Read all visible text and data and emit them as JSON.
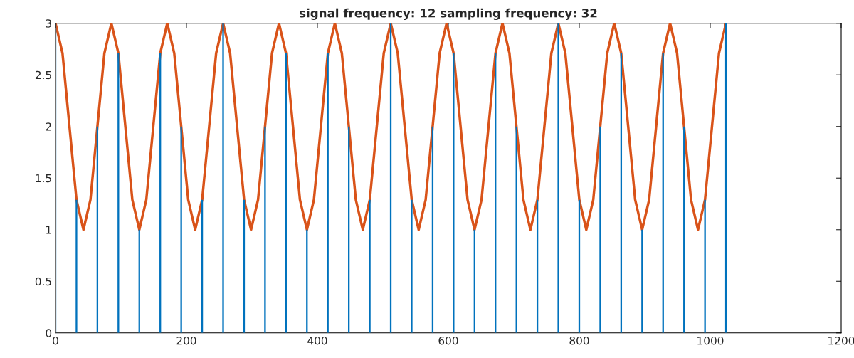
{
  "chart_data": {
    "type": "line",
    "title": "signal frequency: 12 sampling frequency: 32",
    "xlim": [
      0,
      1200
    ],
    "xticks": [
      0,
      200,
      400,
      600,
      800,
      1000,
      1200
    ],
    "ylim": [
      0,
      3
    ],
    "yticks": [
      0,
      0.5,
      1,
      1.5,
      2,
      2.5,
      3
    ],
    "grid": false,
    "legend": false,
    "marker": "none",
    "line_style": "solid",
    "series": [
      {
        "type": "bar",
        "color": "#0072bd",
        "x": [
          0,
          32,
          64,
          96,
          128,
          160,
          192,
          224,
          256,
          288,
          320,
          352,
          384,
          416,
          448,
          480,
          512,
          544,
          576,
          608,
          640,
          672,
          704,
          736,
          768,
          800,
          832,
          864,
          896,
          928,
          960,
          992,
          1024
        ],
        "values": [
          3,
          1.29,
          2,
          2.71,
          1,
          2.71,
          2,
          1.29,
          3,
          1.29,
          2,
          2.71,
          1,
          2.71,
          2,
          1.29,
          3,
          1.29,
          2,
          2.71,
          1,
          2.71,
          2,
          1.29,
          3,
          1.29,
          2,
          2.71,
          1,
          2.71,
          2,
          1.29,
          3
        ]
      },
      {
        "color": "#d95319",
        "x": [
          0,
          10.67,
          21.33,
          32,
          42.67,
          53.33,
          64,
          74.67,
          85.33,
          96,
          106.67,
          117.33,
          128,
          138.67,
          149.33,
          160,
          170.67,
          181.33,
          192,
          202.67,
          213.33,
          224,
          234.67,
          245.33,
          256,
          266.67,
          277.33,
          288,
          298.67,
          309.33,
          320,
          330.67,
          341.33,
          352,
          362.67,
          373.33,
          384,
          394.67,
          405.33,
          416,
          426.67,
          437.33,
          448,
          458.67,
          469.33,
          480,
          490.67,
          501.33,
          512,
          522.67,
          533.33,
          544,
          554.67,
          565.33,
          576,
          586.67,
          597.33,
          608,
          618.67,
          629.33,
          640,
          650.67,
          661.33,
          672,
          682.67,
          693.33,
          704,
          714.67,
          725.33,
          736,
          746.67,
          757.33,
          768,
          778.67,
          789.33,
          800,
          810.67,
          821.33,
          832,
          842.67,
          853.33,
          864,
          874.67,
          885.33,
          896,
          906.67,
          917.33,
          928,
          938.67,
          949.33,
          960,
          970.67,
          981.33,
          992,
          1002.67,
          1013.33,
          1024
        ],
        "values": [
          3,
          2.71,
          2,
          1.29,
          1,
          1.29,
          2,
          2.71,
          3,
          2.71,
          2,
          1.29,
          1,
          1.29,
          2,
          2.71,
          3,
          2.71,
          2,
          1.29,
          1,
          1.29,
          2,
          2.71,
          3,
          2.71,
          2,
          1.29,
          1,
          1.29,
          2,
          2.71,
          3,
          2.71,
          2,
          1.29,
          1,
          1.29,
          2,
          2.71,
          3,
          2.71,
          2,
          1.29,
          1,
          1.29,
          2,
          2.71,
          3,
          2.71,
          2,
          1.29,
          1,
          1.29,
          2,
          2.71,
          3,
          2.71,
          2,
          1.29,
          1,
          1.29,
          2,
          2.71,
          3,
          2.71,
          2,
          1.29,
          1,
          1.29,
          2,
          2.71,
          3,
          2.71,
          2,
          1.29,
          1,
          1.29,
          2,
          2.71,
          3,
          2.71,
          2,
          1.29,
          1,
          1.29,
          2,
          2.71,
          3,
          2.71,
          2,
          1.29,
          1,
          1.29,
          2,
          2.71,
          3
        ]
      }
    ]
  }
}
